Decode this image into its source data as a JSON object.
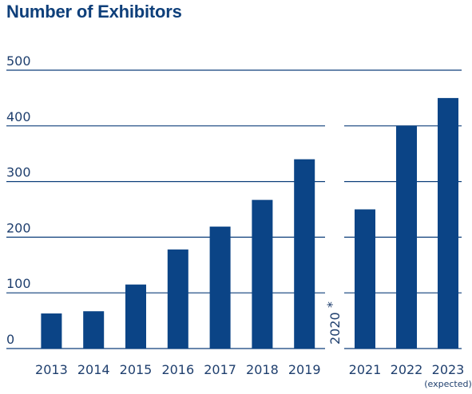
{
  "chart_data": {
    "type": "bar",
    "title": "Number of Exhibitors",
    "xlabel": "",
    "ylabel": "",
    "ylim": [
      0,
      500
    ],
    "yticks": [
      "0",
      "100",
      "200",
      "300",
      "400",
      "500"
    ],
    "grid": true,
    "bar_color": "#0b4486",
    "categories": [
      "2013",
      "2014",
      "2015",
      "2016",
      "2017",
      "2018",
      "2019",
      "2021",
      "2022",
      "2023"
    ],
    "values": [
      63,
      67,
      115,
      178,
      219,
      267,
      340,
      250,
      400,
      450
    ],
    "gap_label": "2020",
    "gap_note": "*",
    "annotations": [
      {
        "category": "2023",
        "text": "(expected)"
      }
    ]
  }
}
